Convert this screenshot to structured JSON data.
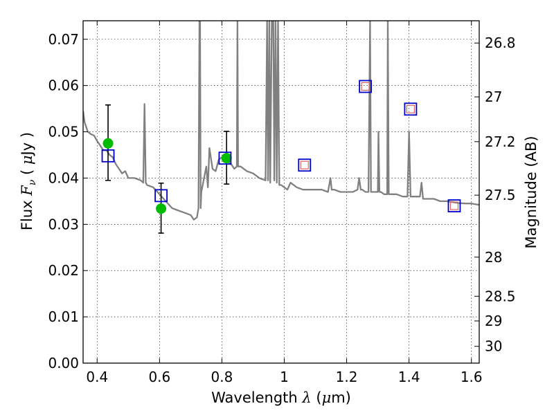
{
  "chart_data": {
    "type": "line",
    "xlabel": "Wavelength  λ (μm)",
    "ylabel": "Flux  F_ν  ( μJy )",
    "y2label": "Magnitude (AB)",
    "xlim": [
      0.355,
      1.625
    ],
    "ylim": [
      0.0,
      0.074
    ],
    "grid": true,
    "x_ticks": [
      0.4,
      0.6,
      0.8,
      1.0,
      1.2,
      1.4,
      1.6
    ],
    "x_tick_labels": [
      "0.4",
      "0.6",
      "0.8",
      "1",
      "1.2",
      "1.4",
      "1.6"
    ],
    "y_ticks": [
      0.0,
      0.01,
      0.02,
      0.03,
      0.04,
      0.05,
      0.06,
      0.07
    ],
    "y_tick_labels": [
      "0.00",
      "0.01",
      "0.02",
      "0.03",
      "0.04",
      "0.05",
      "0.06",
      "0.07"
    ],
    "y2_ticks": [
      26.8,
      27.0,
      27.2,
      27.5,
      28.0,
      28.5,
      29.0,
      30.0
    ],
    "y2_tick_labels": [
      "26.8",
      "27",
      "27.2",
      "27.5",
      "28",
      "28.5",
      "29",
      "30"
    ],
    "series": [
      {
        "type": "line",
        "color": "#808080",
        "x": [
          0.355,
          0.36,
          0.37,
          0.38,
          0.39,
          0.4,
          0.41,
          0.42,
          0.43,
          0.44,
          0.45,
          0.46,
          0.47,
          0.48,
          0.49,
          0.5,
          0.52,
          0.54,
          0.548,
          0.552,
          0.556,
          0.56,
          0.58,
          0.6,
          0.62,
          0.64,
          0.66,
          0.68,
          0.7,
          0.71,
          0.72,
          0.725,
          0.728,
          0.73,
          0.732,
          0.734,
          0.74,
          0.75,
          0.755,
          0.76,
          0.77,
          0.78,
          0.79,
          0.8,
          0.81,
          0.82,
          0.83,
          0.84,
          0.848,
          0.85,
          0.852,
          0.856,
          0.86,
          0.88,
          0.9,
          0.92,
          0.94,
          0.945,
          0.948,
          0.952,
          0.955,
          0.96,
          0.965,
          0.968,
          0.972,
          0.976,
          0.98,
          0.984,
          0.99,
          1.0,
          1.01,
          1.02,
          1.04,
          1.06,
          1.08,
          1.1,
          1.12,
          1.14,
          1.148,
          1.152,
          1.16,
          1.18,
          1.2,
          1.22,
          1.235,
          1.24,
          1.245,
          1.25,
          1.26,
          1.27,
          1.275,
          1.278,
          1.28,
          1.29,
          1.3,
          1.302,
          1.305,
          1.31,
          1.32,
          1.33,
          1.332,
          1.335,
          1.34,
          1.36,
          1.38,
          1.395,
          1.4,
          1.405,
          1.42,
          1.435,
          1.44,
          1.445,
          1.46,
          1.48,
          1.5,
          1.52,
          1.54,
          1.56,
          1.58,
          1.6,
          1.625
        ],
        "y": [
          0.0545,
          0.052,
          0.05,
          0.0495,
          0.0492,
          0.048,
          0.047,
          0.046,
          0.046,
          0.045,
          0.0445,
          0.043,
          0.042,
          0.041,
          0.0415,
          0.04,
          0.04,
          0.0395,
          0.039,
          0.056,
          0.039,
          0.0385,
          0.038,
          0.0365,
          0.035,
          0.0335,
          0.033,
          0.0325,
          0.032,
          0.031,
          0.0315,
          0.0335,
          0.074,
          0.074,
          0.0335,
          0.037,
          0.039,
          0.0425,
          0.038,
          0.0465,
          0.042,
          0.0415,
          0.044,
          0.0445,
          0.0445,
          0.0435,
          0.043,
          0.042,
          0.0425,
          0.074,
          0.0425,
          0.0425,
          0.0425,
          0.0415,
          0.041,
          0.04,
          0.0395,
          0.074,
          0.0395,
          0.074,
          0.039,
          0.074,
          0.074,
          0.0395,
          0.074,
          0.039,
          0.074,
          0.0385,
          0.0385,
          0.038,
          0.0375,
          0.039,
          0.038,
          0.0375,
          0.0375,
          0.0375,
          0.0375,
          0.037,
          0.04,
          0.0375,
          0.0375,
          0.037,
          0.037,
          0.037,
          0.0375,
          0.04,
          0.0375,
          0.0375,
          0.037,
          0.037,
          0.074,
          0.037,
          0.037,
          0.037,
          0.037,
          0.05,
          0.037,
          0.037,
          0.0365,
          0.0365,
          0.074,
          0.0365,
          0.0365,
          0.0365,
          0.036,
          0.036,
          0.05,
          0.036,
          0.036,
          0.036,
          0.039,
          0.0355,
          0.0355,
          0.0355,
          0.035,
          0.035,
          0.0348,
          0.0346,
          0.0345,
          0.0345,
          0.0342
        ]
      },
      {
        "type": "scatter",
        "marker": "circle",
        "color": "#00bb00",
        "x": [
          0.435,
          0.605,
          0.815
        ],
        "y": [
          0.0475,
          0.0334,
          0.0443
        ]
      },
      {
        "type": "errorbar",
        "color": "#000000",
        "x": [
          0.435,
          0.605,
          0.815
        ],
        "y": [
          0.0475,
          0.0334,
          0.0443
        ],
        "yerr_low": [
          0.0395,
          0.0281,
          0.0387
        ],
        "yerr_high": [
          0.0558,
          0.0389,
          0.0501
        ]
      },
      {
        "type": "scatter",
        "marker": "square-open",
        "color": "#0000cc",
        "x": [
          0.435,
          0.605,
          0.81,
          1.065,
          1.26,
          1.405,
          1.545
        ],
        "y": [
          0.0448,
          0.0362,
          0.0443,
          0.0428,
          0.0598,
          0.0549,
          0.034
        ]
      },
      {
        "type": "scatter",
        "marker": "square-open-small",
        "color": "#e06060",
        "x": [
          1.065,
          1.26,
          1.405,
          1.545
        ],
        "y": [
          0.0428,
          0.0598,
          0.0549,
          0.034
        ]
      }
    ]
  }
}
